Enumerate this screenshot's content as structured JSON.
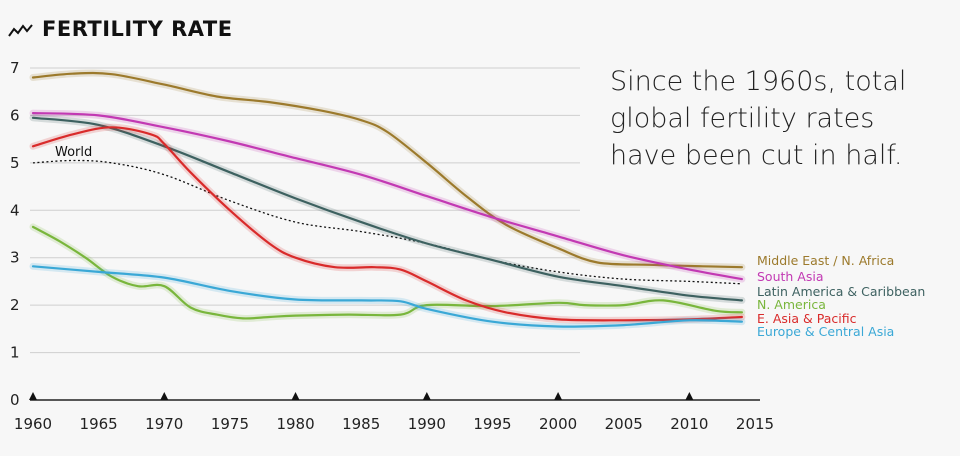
{
  "chart_data": {
    "type": "line",
    "title": "FERTILITY RATE",
    "title_icon": "trend-line-icon",
    "annotation": [
      "Since the 1960s, total",
      "global fertility rates",
      "have been cut in half."
    ],
    "xlim": [
      1960,
      2015
    ],
    "ylim": [
      0,
      7
    ],
    "xticks": [
      1960,
      1965,
      1970,
      1975,
      1980,
      1985,
      1990,
      1995,
      2000,
      2005,
      2010,
      2015
    ],
    "yticks": [
      0,
      1,
      2,
      3,
      4,
      5,
      6,
      7
    ],
    "x_markers": [
      1960,
      1970,
      1980,
      1990,
      2000,
      2010
    ],
    "grid": true,
    "legend_position": "right",
    "series": [
      {
        "name": "Middle East / N. Africa",
        "color": "#9c7a2c",
        "points": [
          [
            1960,
            6.8
          ],
          [
            1963,
            6.88
          ],
          [
            1966,
            6.87
          ],
          [
            1970,
            6.65
          ],
          [
            1974,
            6.4
          ],
          [
            1978,
            6.28
          ],
          [
            1982,
            6.1
          ],
          [
            1985,
            5.9
          ],
          [
            1987,
            5.65
          ],
          [
            1990,
            5.0
          ],
          [
            1993,
            4.3
          ],
          [
            1996,
            3.7
          ],
          [
            2000,
            3.2
          ],
          [
            2003,
            2.9
          ],
          [
            2007,
            2.85
          ],
          [
            2011,
            2.82
          ],
          [
            2014,
            2.8
          ]
        ]
      },
      {
        "name": "South Asia",
        "color": "#c239b3",
        "points": [
          [
            1960,
            6.05
          ],
          [
            1965,
            6.0
          ],
          [
            1970,
            5.75
          ],
          [
            1975,
            5.45
          ],
          [
            1980,
            5.1
          ],
          [
            1985,
            4.75
          ],
          [
            1990,
            4.3
          ],
          [
            1995,
            3.85
          ],
          [
            2000,
            3.45
          ],
          [
            2005,
            3.05
          ],
          [
            2010,
            2.75
          ],
          [
            2014,
            2.55
          ]
        ]
      },
      {
        "name": "Latin America & Caribbean",
        "color": "#3d6160",
        "points": [
          [
            1960,
            5.95
          ],
          [
            1965,
            5.8
          ],
          [
            1970,
            5.35
          ],
          [
            1975,
            4.8
          ],
          [
            1980,
            4.25
          ],
          [
            1985,
            3.75
          ],
          [
            1990,
            3.3
          ],
          [
            1995,
            2.95
          ],
          [
            2000,
            2.6
          ],
          [
            2005,
            2.4
          ],
          [
            2010,
            2.2
          ],
          [
            2014,
            2.1
          ]
        ]
      },
      {
        "name": "N. America",
        "color": "#79b63c",
        "points": [
          [
            1960,
            3.65
          ],
          [
            1962,
            3.35
          ],
          [
            1964,
            3.0
          ],
          [
            1966,
            2.6
          ],
          [
            1968,
            2.4
          ],
          [
            1970,
            2.4
          ],
          [
            1972,
            1.95
          ],
          [
            1974,
            1.8
          ],
          [
            1976,
            1.72
          ],
          [
            1978,
            1.75
          ],
          [
            1980,
            1.78
          ],
          [
            1984,
            1.8
          ],
          [
            1988,
            1.8
          ],
          [
            1990,
            2.0
          ],
          [
            1995,
            1.98
          ],
          [
            2000,
            2.05
          ],
          [
            2002,
            2.0
          ],
          [
            2005,
            2.0
          ],
          [
            2008,
            2.1
          ],
          [
            2012,
            1.88
          ],
          [
            2014,
            1.85
          ]
        ]
      },
      {
        "name": "E. Asia & Pacific",
        "color": "#d92b2b",
        "points": [
          [
            1960,
            5.35
          ],
          [
            1963,
            5.6
          ],
          [
            1966,
            5.75
          ],
          [
            1969,
            5.6
          ],
          [
            1970,
            5.4
          ],
          [
            1972,
            4.8
          ],
          [
            1975,
            4.0
          ],
          [
            1978,
            3.3
          ],
          [
            1980,
            3.0
          ],
          [
            1983,
            2.8
          ],
          [
            1986,
            2.8
          ],
          [
            1988,
            2.75
          ],
          [
            1990,
            2.5
          ],
          [
            1993,
            2.1
          ],
          [
            1996,
            1.85
          ],
          [
            2000,
            1.7
          ],
          [
            2005,
            1.68
          ],
          [
            2010,
            1.7
          ],
          [
            2014,
            1.75
          ]
        ]
      },
      {
        "name": "Europe & Central Asia",
        "color": "#3aa8d6",
        "points": [
          [
            1960,
            2.82
          ],
          [
            1965,
            2.7
          ],
          [
            1970,
            2.58
          ],
          [
            1975,
            2.3
          ],
          [
            1980,
            2.12
          ],
          [
            1985,
            2.1
          ],
          [
            1988,
            2.08
          ],
          [
            1990,
            1.92
          ],
          [
            1995,
            1.65
          ],
          [
            2000,
            1.55
          ],
          [
            2005,
            1.58
          ],
          [
            2010,
            1.68
          ],
          [
            2014,
            1.65
          ]
        ]
      },
      {
        "name": "World",
        "color": "#111111",
        "dashed": true,
        "points": [
          [
            1960,
            5.0
          ],
          [
            1963,
            5.05
          ],
          [
            1966,
            5.0
          ],
          [
            1970,
            4.75
          ],
          [
            1975,
            4.2
          ],
          [
            1980,
            3.75
          ],
          [
            1985,
            3.55
          ],
          [
            1990,
            3.3
          ],
          [
            1995,
            2.95
          ],
          [
            2000,
            2.7
          ],
          [
            2005,
            2.55
          ],
          [
            2010,
            2.5
          ],
          [
            2014,
            2.45
          ]
        ]
      }
    ]
  }
}
